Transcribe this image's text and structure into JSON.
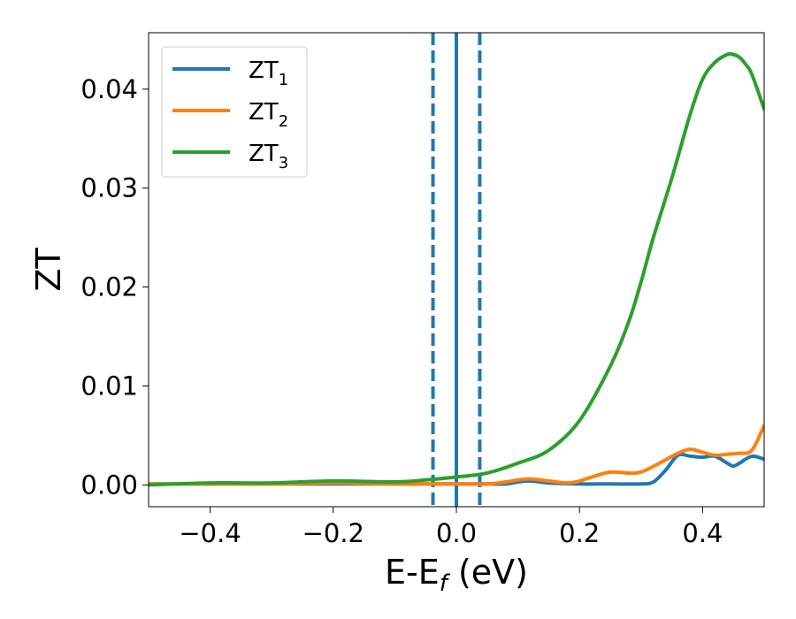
{
  "chart_data": {
    "type": "line",
    "xlabel_main": "E-E",
    "xlabel_sub": "f",
    "xlabel_unit": " (eV)",
    "ylabel": "ZT",
    "xlim": [
      -0.5,
      0.5
    ],
    "ylim": [
      -0.0022,
      0.0457
    ],
    "xticks": [
      -0.4,
      -0.2,
      0.0,
      0.2,
      0.4
    ],
    "xtick_labels": [
      "−0.4",
      "−0.2",
      "0.0",
      "0.2",
      "0.4"
    ],
    "yticks": [
      0.0,
      0.01,
      0.02,
      0.03,
      0.04
    ],
    "ytick_labels": [
      "0.00",
      "0.01",
      "0.02",
      "0.03",
      "0.04"
    ],
    "grid": false,
    "legend_position": "top-left",
    "vlines": [
      {
        "x": 0.0,
        "style": "solid",
        "color": "#000000"
      },
      {
        "x": 0.0,
        "style": "solid",
        "color": "#1f77b4"
      },
      {
        "x": -0.038,
        "style": "dashed",
        "color": "#1f77b4"
      },
      {
        "x": 0.038,
        "style": "dashed",
        "color": "#1f77b4"
      }
    ],
    "series": [
      {
        "name": "ZT",
        "sub": "1",
        "color": "#1f77b4",
        "x": [
          -0.5,
          -0.4,
          -0.3,
          -0.2,
          -0.1,
          0.0,
          0.05,
          0.08,
          0.1,
          0.12,
          0.15,
          0.2,
          0.25,
          0.3,
          0.32,
          0.34,
          0.36,
          0.38,
          0.4,
          0.42,
          0.44,
          0.45,
          0.46,
          0.48,
          0.5
        ],
        "y": [
          0.0001,
          0.0001,
          0.0001,
          0.0001,
          0.0001,
          0.0001,
          0.0001,
          0.0001,
          0.0003,
          0.0004,
          0.0002,
          0.0001,
          0.0001,
          0.0001,
          0.0003,
          0.0015,
          0.003,
          0.0029,
          0.0028,
          0.0029,
          0.0022,
          0.0019,
          0.0022,
          0.0029,
          0.0026
        ]
      },
      {
        "name": "ZT",
        "sub": "2",
        "color": "#ff7f0e",
        "x": [
          -0.5,
          -0.4,
          -0.3,
          -0.2,
          -0.1,
          0.0,
          0.05,
          0.08,
          0.1,
          0.12,
          0.15,
          0.18,
          0.2,
          0.22,
          0.25,
          0.28,
          0.3,
          0.33,
          0.36,
          0.38,
          0.4,
          0.42,
          0.44,
          0.46,
          0.48,
          0.5
        ],
        "y": [
          0.0001,
          0.0001,
          0.0001,
          0.0002,
          0.0001,
          0.0001,
          0.0001,
          0.0003,
          0.0005,
          0.0006,
          0.0004,
          0.0002,
          0.0004,
          0.0008,
          0.0013,
          0.0012,
          0.0013,
          0.0022,
          0.0032,
          0.0036,
          0.0033,
          0.003,
          0.0031,
          0.0032,
          0.0035,
          0.006
        ]
      },
      {
        "name": "ZT",
        "sub": "3",
        "color": "#2ca02c",
        "x": [
          -0.5,
          -0.4,
          -0.3,
          -0.2,
          -0.1,
          -0.05,
          0.0,
          0.05,
          0.1,
          0.15,
          0.2,
          0.25,
          0.28,
          0.3,
          0.32,
          0.35,
          0.38,
          0.4,
          0.42,
          0.44,
          0.45,
          0.46,
          0.47,
          0.48,
          0.5
        ],
        "y": [
          0.0,
          0.0002,
          0.0002,
          0.0004,
          0.0003,
          0.0005,
          0.0008,
          0.0012,
          0.0022,
          0.0035,
          0.0065,
          0.012,
          0.0165,
          0.0205,
          0.025,
          0.031,
          0.0375,
          0.041,
          0.0427,
          0.0435,
          0.0435,
          0.0432,
          0.0425,
          0.0415,
          0.038
        ]
      }
    ]
  }
}
